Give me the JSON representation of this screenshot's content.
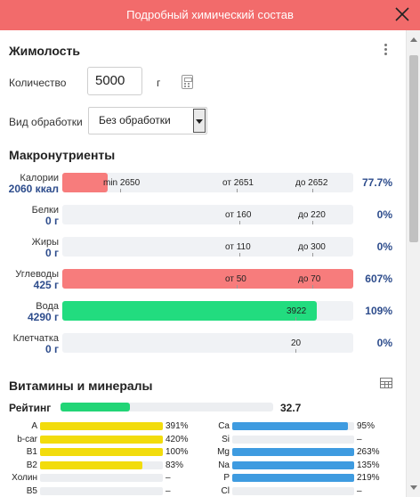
{
  "header": {
    "title": "Подробный химический состав"
  },
  "section1": {
    "title": "Жимолость"
  },
  "quantity": {
    "label": "Количество",
    "value": "5000",
    "unit": "г"
  },
  "processing": {
    "label": "Вид обработки",
    "value": "Без обработки"
  },
  "macro": {
    "title": "Макронутриенты",
    "rows": [
      {
        "name": "Калории",
        "amount": "2060 ккал",
        "fraction": 0.156,
        "color": "#f77c7c",
        "percent": "77.7%",
        "markers": [
          {
            "text": "min 2650",
            "pos": 0.14,
            "tick": 0.2
          },
          {
            "text": "от 2651",
            "pos": 0.55,
            "tick": 0.6
          },
          {
            "text": "до 2652",
            "pos": 0.8,
            "tick": 0.86
          }
        ]
      },
      {
        "name": "Белки",
        "amount": "0 г",
        "fraction": 0,
        "color": "#f77c7c",
        "percent": "0%",
        "markers": [
          {
            "text": "от 160",
            "pos": 0.56,
            "tick": 0.61
          },
          {
            "text": "до 220",
            "pos": 0.81,
            "tick": 0.86
          }
        ]
      },
      {
        "name": "Жиры",
        "amount": "0 г",
        "fraction": 0,
        "color": "#f77c7c",
        "percent": "0%",
        "markers": [
          {
            "text": "от 110",
            "pos": 0.56,
            "tick": 0.61
          },
          {
            "text": "до 300",
            "pos": 0.81,
            "tick": 0.86
          }
        ]
      },
      {
        "name": "Углеводы",
        "amount": "425 г",
        "fraction": 1.0,
        "color": "#f77c7c",
        "percent": "607%",
        "markers": [
          {
            "text": "от 50",
            "pos": 0.56,
            "tick": 0.6
          },
          {
            "text": "до 70",
            "pos": 0.81,
            "tick": 0.86
          }
        ]
      },
      {
        "name": "Вода",
        "amount": "4290 г",
        "fraction": 0.875,
        "color": "#22dc7f",
        "percent": "109%",
        "markers": [
          {
            "text": "3922",
            "pos": 0.77,
            "tick": 0.8
          }
        ]
      },
      {
        "name": "Клетчатка",
        "amount": "0 г",
        "fraction": 0,
        "color": "#f77c7c",
        "percent": "0%",
        "markers": [
          {
            "text": "20",
            "pos": 0.785,
            "tick": 0.8
          }
        ]
      }
    ]
  },
  "vitamins": {
    "title": "Витамины и минералы",
    "rating_label": "Рейтинг",
    "rating_value": "32.7",
    "rating_fraction": 0.327,
    "vitamin_color": "#f2dc0c",
    "mineral_color": "#3e9be0",
    "left": [
      {
        "name": "A",
        "value": "391%",
        "fraction": 1.0
      },
      {
        "name": "b-car",
        "value": "420%",
        "fraction": 1.0
      },
      {
        "name": "B1",
        "value": "100%",
        "fraction": 1.0
      },
      {
        "name": "B2",
        "value": "83%",
        "fraction": 0.83
      },
      {
        "name": "Холин",
        "value": "–",
        "fraction": 0
      },
      {
        "name": "B5",
        "value": "–",
        "fraction": 0
      }
    ],
    "right": [
      {
        "name": "Ca",
        "value": "95%",
        "fraction": 0.95
      },
      {
        "name": "Si",
        "value": "–",
        "fraction": 0
      },
      {
        "name": "Mg",
        "value": "263%",
        "fraction": 1.0
      },
      {
        "name": "Na",
        "value": "135%",
        "fraction": 1.0
      },
      {
        "name": "P",
        "value": "219%",
        "fraction": 1.0
      },
      {
        "name": "Cl",
        "value": "–",
        "fraction": 0
      }
    ]
  }
}
